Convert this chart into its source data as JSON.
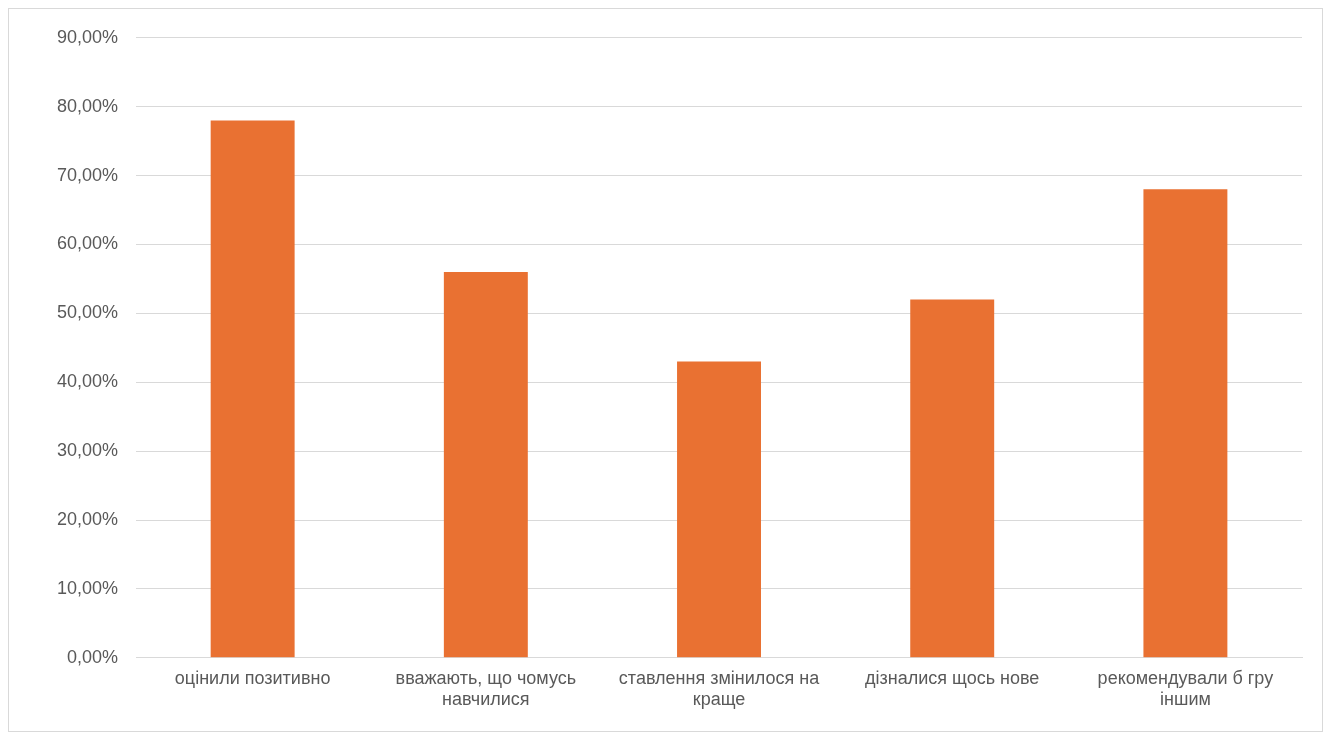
{
  "chart_data": {
    "type": "bar",
    "categories": [
      "оцінили позитивно",
      "вважають, що чомусь навчилися",
      "ставлення змінилося на краще",
      "дізналися щось нове",
      "рекомендували б гру іншим"
    ],
    "values": [
      78,
      56,
      43,
      52,
      68
    ],
    "color": "#e97132",
    "ylim": [
      0,
      90
    ],
    "yticks": [
      {
        "value": 0,
        "label": "0,00%"
      },
      {
        "value": 10,
        "label": "10,00%"
      },
      {
        "value": 20,
        "label": "20,00%"
      },
      {
        "value": 30,
        "label": "30,00%"
      },
      {
        "value": 40,
        "label": "40,00%"
      },
      {
        "value": 50,
        "label": "50,00%"
      },
      {
        "value": 60,
        "label": "60,00%"
      },
      {
        "value": 70,
        "label": "70,00%"
      },
      {
        "value": 80,
        "label": "80,00%"
      },
      {
        "value": 90,
        "label": "90,00%"
      }
    ],
    "grid": "y",
    "legend": false
  }
}
